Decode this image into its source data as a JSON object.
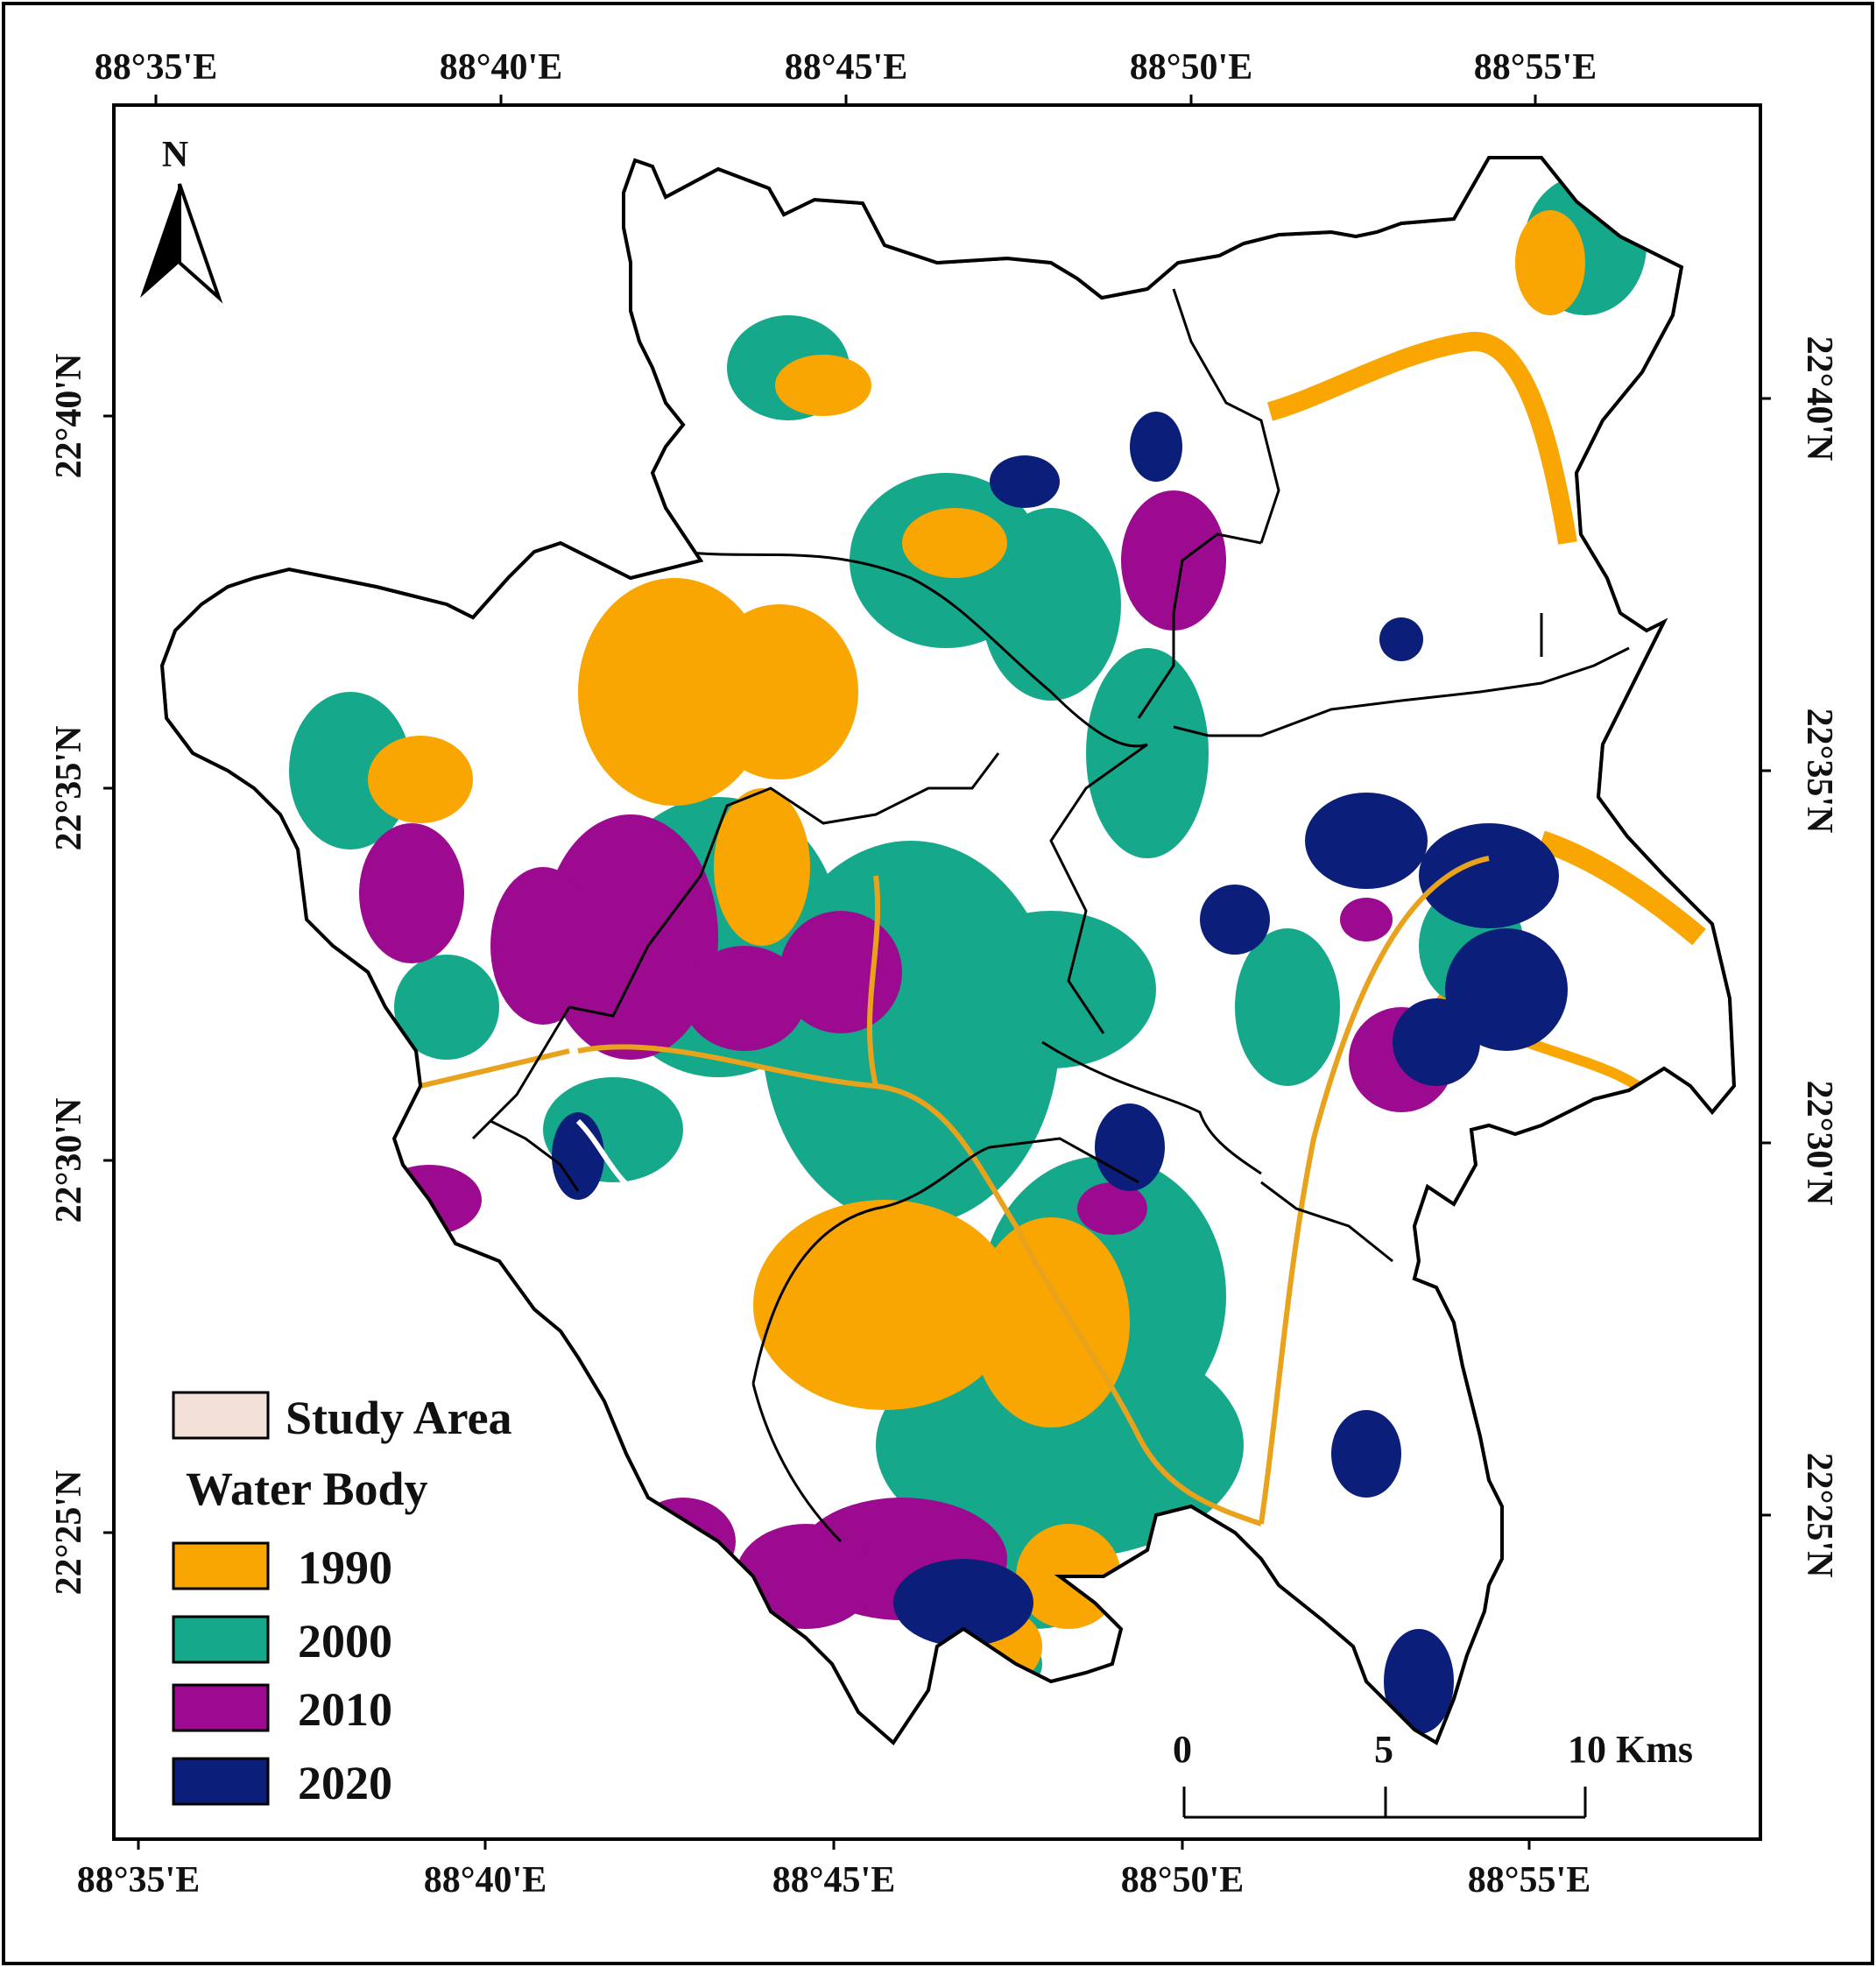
{
  "map": {
    "top_longitude_labels": [
      "88°35'E",
      "88°40'E",
      "88°45'E",
      "88°50'E",
      "88°55'E"
    ],
    "bottom_longitude_labels": [
      "88°35'E",
      "88°40'E",
      "88°45'E",
      "88°50'E",
      "88°55'E"
    ],
    "left_latitude_labels": [
      "22°40'N",
      "22°35'N",
      "22°30'N",
      "22°25'N"
    ],
    "right_latitude_labels": [
      "22°40'N",
      "22°35'N",
      "22°30'N",
      "22°25'N"
    ],
    "north_arrow_label": "N"
  },
  "legend": {
    "study_area": {
      "label": "Study Area",
      "color": "#f3e0d6"
    },
    "heading": "Water Body",
    "items": [
      {
        "label": "1990",
        "color": "#f9a602"
      },
      {
        "label": "2000",
        "color": "#16a88a"
      },
      {
        "label": "2010",
        "color": "#9c0a8f"
      },
      {
        "label": "2020",
        "color": "#0b1f7a"
      }
    ]
  },
  "scale_bar": {
    "labels": [
      "0",
      "5",
      "10 Kms"
    ]
  }
}
